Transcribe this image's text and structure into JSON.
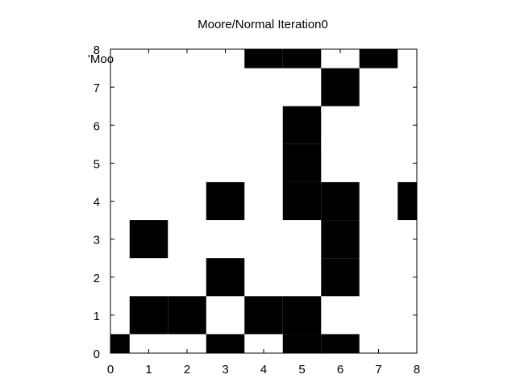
{
  "chart_data": {
    "type": "heatmap",
    "title": "Moore/Normal Iteration0",
    "legend_text": "'Moo",
    "xlim": [
      0,
      8
    ],
    "ylim": [
      0,
      8
    ],
    "x_ticks": [
      "0",
      "1",
      "2",
      "3",
      "4",
      "5",
      "6",
      "7",
      "8"
    ],
    "y_ticks": [
      "0",
      "1",
      "2",
      "3",
      "4",
      "5",
      "6",
      "7",
      "8"
    ],
    "colors": {
      "alive": "#000000",
      "dead": "#ffffff"
    },
    "cells": [
      {
        "x": 0,
        "y": 0
      },
      {
        "x": 3,
        "y": 0
      },
      {
        "x": 5,
        "y": 0
      },
      {
        "x": 6,
        "y": 0
      },
      {
        "x": 1,
        "y": 1
      },
      {
        "x": 2,
        "y": 1
      },
      {
        "x": 4,
        "y": 1
      },
      {
        "x": 5,
        "y": 1
      },
      {
        "x": 3,
        "y": 2
      },
      {
        "x": 6,
        "y": 2
      },
      {
        "x": 1,
        "y": 3
      },
      {
        "x": 6,
        "y": 3
      },
      {
        "x": 3,
        "y": 4
      },
      {
        "x": 5,
        "y": 4
      },
      {
        "x": 6,
        "y": 4
      },
      {
        "x": 8,
        "y": 4
      },
      {
        "x": 5,
        "y": 5
      },
      {
        "x": 5,
        "y": 6
      },
      {
        "x": 6,
        "y": 7
      },
      {
        "x": 4,
        "y": 8
      },
      {
        "x": 5,
        "y": 8
      },
      {
        "x": 7,
        "y": 8
      }
    ]
  }
}
